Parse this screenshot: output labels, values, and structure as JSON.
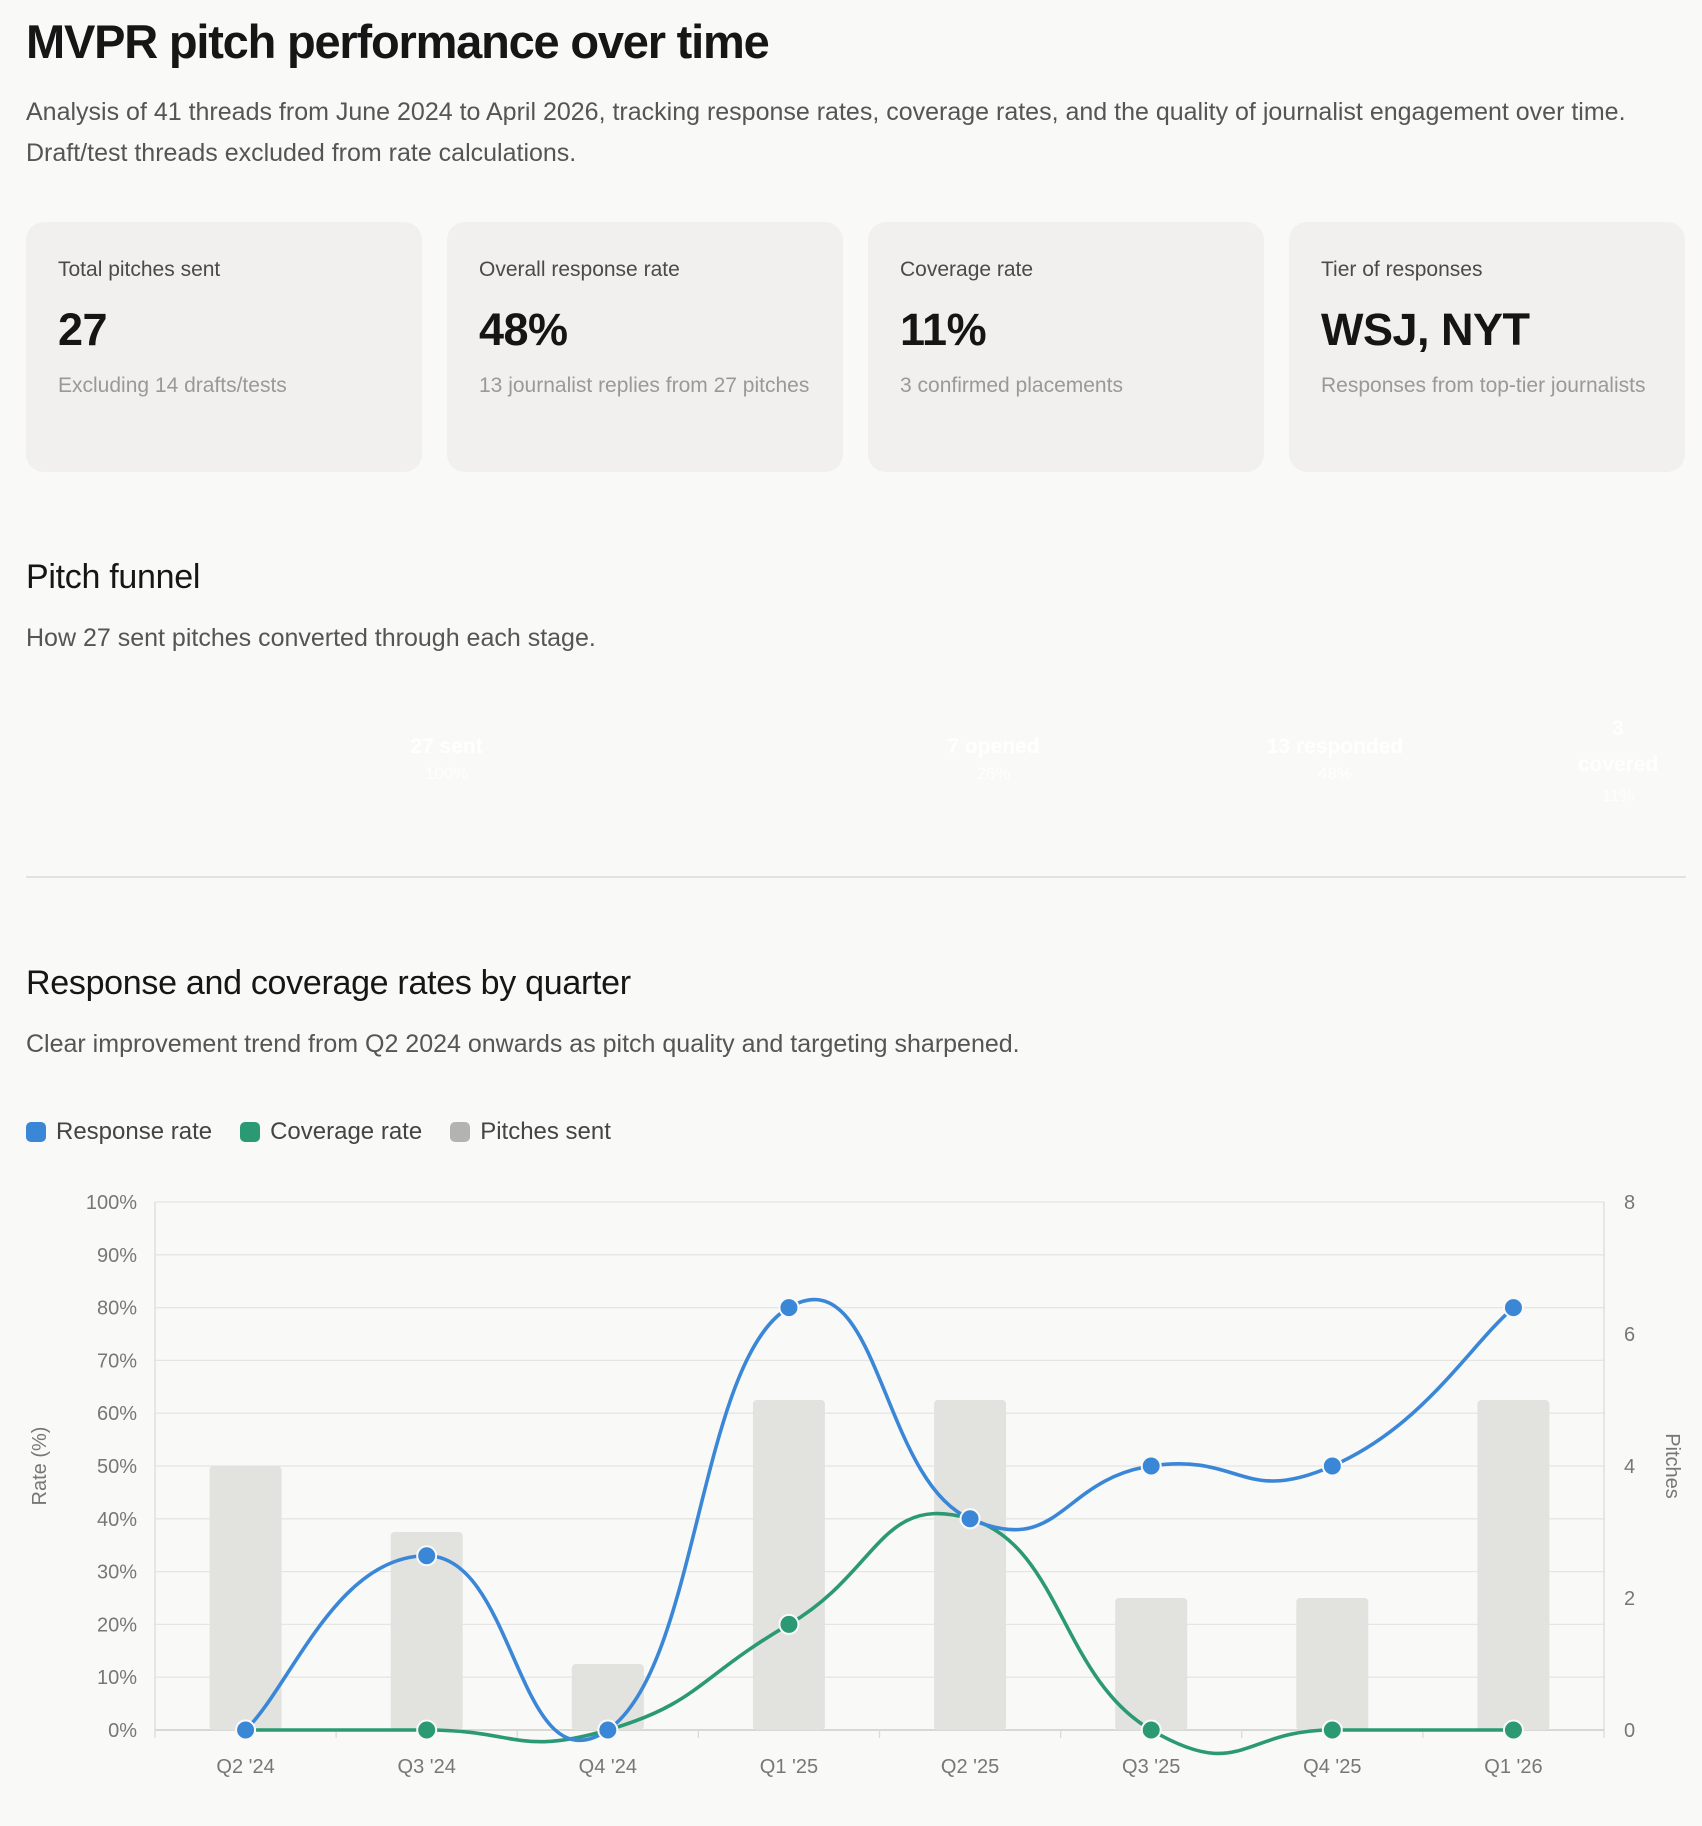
{
  "header": {
    "title": "MVPR pitch performance over time",
    "intro": "Analysis of 41 threads from June 2024 to April 2026, tracking response rates, coverage rates, and the quality of journalist engagement over time. Draft/test threads excluded from rate calculations."
  },
  "cards": [
    {
      "label": "Total pitches sent",
      "value": "27",
      "sub": "Excluding 14 drafts/tests"
    },
    {
      "label": "Overall response rate",
      "value": "48%",
      "sub": "13 journalist replies from 27 pitches"
    },
    {
      "label": "Coverage rate",
      "value": "11%",
      "sub": "3 confirmed placements"
    },
    {
      "label": "Tier of responses",
      "value": "WSJ, NYT",
      "sub": "Responses from top-tier journalists"
    }
  ],
  "funnel": {
    "title": "Pitch funnel",
    "description": "How 27 sent pitches converted through each stage.",
    "stages": [
      {
        "label": "27 sent",
        "pct": "100%",
        "count": 27,
        "color": "#888883"
      },
      {
        "label": "7 opened",
        "pct": "26%",
        "count": 7,
        "color": "#b8762e"
      },
      {
        "label": "13 responded",
        "pct": "48%",
        "count": 13,
        "color": "#3b87d7"
      },
      {
        "label": "3 covered",
        "pct": "11%",
        "count": 3,
        "color": "#2b9a74"
      }
    ]
  },
  "quarterly": {
    "title": "Response and coverage rates by quarter",
    "description": "Clear improvement trend from Q2 2024 onwards as pitch quality and targeting sharpened."
  },
  "chart_data": {
    "type": "line",
    "categories": [
      "Q2 '24",
      "Q3 '24",
      "Q4 '24",
      "Q1 '25",
      "Q2 '25",
      "Q3 '25",
      "Q4 '25",
      "Q1 '26"
    ],
    "series": [
      {
        "name": "Response rate",
        "type": "line",
        "axis": "left",
        "color": "#3b87d7",
        "values": [
          0,
          33,
          0,
          80,
          40,
          50,
          50,
          80
        ]
      },
      {
        "name": "Coverage rate",
        "type": "line",
        "axis": "left",
        "color": "#2b9a74",
        "values": [
          0,
          0,
          0,
          20,
          40,
          0,
          0,
          0
        ]
      },
      {
        "name": "Pitches sent",
        "type": "bar",
        "axis": "right",
        "color": "#e2e2de",
        "legend_color": "#b3b3b0",
        "values": [
          4,
          3,
          1,
          5,
          5,
          2,
          2,
          5
        ]
      }
    ],
    "ylabel": "Rate (%)",
    "y2label": "Pitches",
    "ylim": [
      0,
      100
    ],
    "y2lim": [
      0,
      8
    ],
    "yticks": [
      "0%",
      "10%",
      "20%",
      "30%",
      "40%",
      "50%",
      "60%",
      "70%",
      "80%",
      "90%",
      "100%"
    ],
    "y2ticks": [
      "0",
      "2",
      "4",
      "6",
      "8"
    ],
    "grid": true,
    "legend": "top-left"
  }
}
